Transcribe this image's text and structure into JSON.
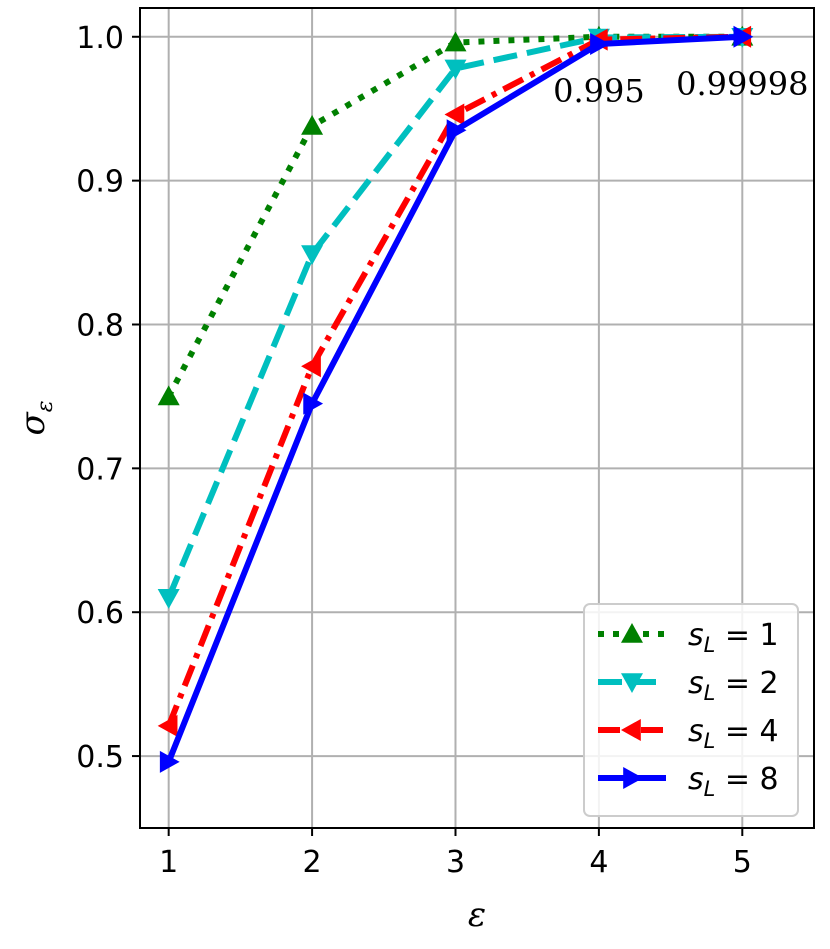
{
  "chart_data": {
    "type": "line",
    "xlabel": "ε",
    "ylabel": "σ",
    "ylabel_sub": "ε",
    "xlim": [
      0.8,
      5.5
    ],
    "ylim": [
      0.45,
      1.02
    ],
    "grid": true,
    "x": [
      1,
      2,
      3,
      4,
      5
    ],
    "x_ticks": [
      1,
      2,
      3,
      4,
      5
    ],
    "x_tick_labels": [
      "1",
      "2",
      "3",
      "4",
      "5"
    ],
    "y_ticks": [
      0.5,
      0.6,
      0.7,
      0.8,
      0.9,
      1.0
    ],
    "y_tick_labels": [
      "0.5",
      "0.6",
      "0.7",
      "0.8",
      "0.9",
      "1.0"
    ],
    "legend_position": "lower-right",
    "series": [
      {
        "name": "s_L = 1",
        "label_var": "s",
        "label_sub": "L",
        "label_val": "1",
        "values": [
          0.75,
          0.938,
          0.996,
          1.0,
          1.0
        ],
        "color": "#008000",
        "dash": "dotted",
        "marker": "triangle-up"
      },
      {
        "name": "s_L = 2",
        "label_var": "s",
        "label_sub": "L",
        "label_val": "2",
        "values": [
          0.61,
          0.849,
          0.978,
          0.9995,
          1.0
        ],
        "color": "#00bfbf",
        "dash": "dashed",
        "marker": "triangle-down"
      },
      {
        "name": "s_L = 4",
        "label_var": "s",
        "label_sub": "L",
        "label_val": "4",
        "values": [
          0.521,
          0.771,
          0.946,
          0.998,
          1.0
        ],
        "color": "#ff0000",
        "dash": "dashdot",
        "marker": "triangle-left"
      },
      {
        "name": "s_L = 8",
        "label_var": "s",
        "label_sub": "L",
        "label_val": "8",
        "values": [
          0.496,
          0.745,
          0.935,
          0.995,
          0.99998
        ],
        "color": "#0000ff",
        "dash": "solid",
        "marker": "triangle-right"
      }
    ],
    "annotations": [
      {
        "text": "0.995",
        "x": 4,
        "y": 0.995
      },
      {
        "text": "0.99998",
        "x": 5,
        "y": 0.99998
      }
    ]
  }
}
